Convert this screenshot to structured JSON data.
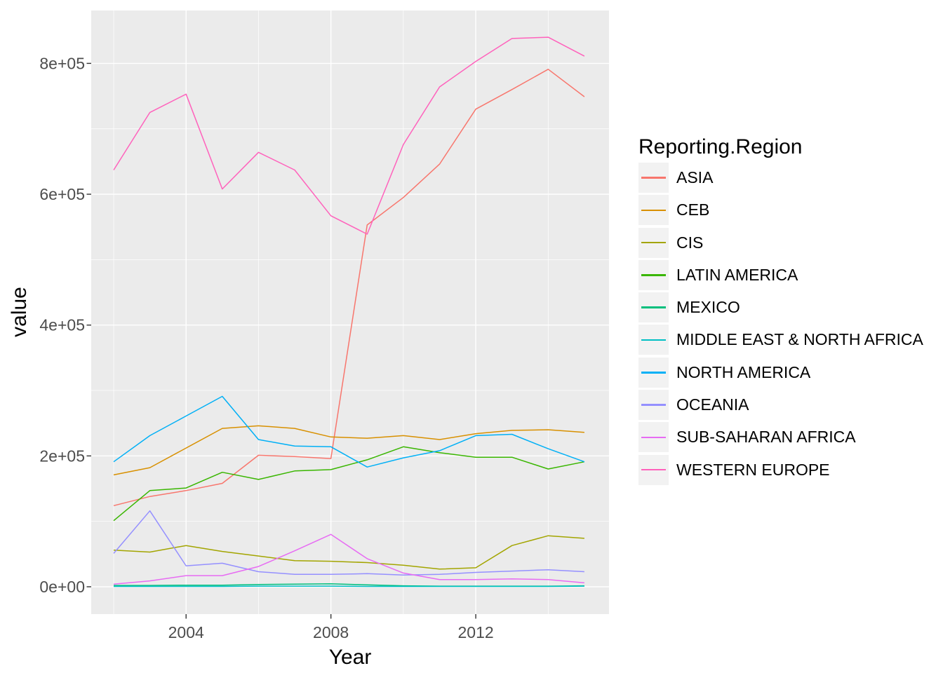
{
  "figure": {
    "background": "#FFFFFF",
    "panel_background": "#EBEBEB",
    "grid_color": "#FFFFFF",
    "tick_mark_color": "#333333",
    "tick_label_color": "#4D4D4D",
    "legend_key_background": "#F2F2F2"
  },
  "axes": {
    "x": {
      "title": "Year",
      "tick_labels": [
        "2004",
        "2008",
        "2012"
      ],
      "tick_values": [
        2004,
        2008,
        2012
      ],
      "minor_tick_values": [
        2002,
        2006,
        2010,
        2014
      ],
      "range": [
        2001.38,
        2015.68
      ]
    },
    "y": {
      "title": "value",
      "tick_labels": [
        "0e+00",
        "2e+05",
        "4e+05",
        "6e+05",
        "8e+05"
      ],
      "tick_values": [
        0,
        200000,
        400000,
        600000,
        800000
      ],
      "minor_tick_values": [
        100000,
        300000,
        500000,
        700000
      ],
      "range": [
        -41800,
        880800
      ]
    }
  },
  "legend": {
    "title": "Reporting.Region",
    "position": "right"
  },
  "chart_data": {
    "type": "line",
    "title": "",
    "xlabel": "Year",
    "ylabel": "value",
    "grid": "on",
    "legend_position": "right",
    "x": [
      2002,
      2003,
      2004,
      2005,
      2006,
      2007,
      2008,
      2009,
      2010,
      2011,
      2012,
      2013,
      2014,
      2015
    ],
    "series": [
      {
        "name": "ASIA",
        "color": "#F8766D",
        "values": [
          124000,
          138000,
          147000,
          158000,
          201000,
          199000,
          196000,
          553000,
          595000,
          646000,
          730000,
          760000,
          791000,
          749000
        ]
      },
      {
        "name": "CEB",
        "color": "#D89000",
        "values": [
          171000,
          182000,
          212000,
          242000,
          246000,
          242000,
          229000,
          227000,
          231000,
          225000,
          234000,
          239000,
          240000,
          236000
        ]
      },
      {
        "name": "CIS",
        "color": "#A3A500",
        "values": [
          56000,
          53000,
          63000,
          54000,
          47000,
          40000,
          39000,
          37000,
          33000,
          27000,
          29000,
          63000,
          78000,
          74000
        ]
      },
      {
        "name": "LATIN AMERICA",
        "color": "#39B600",
        "values": [
          101000,
          147000,
          151000,
          175000,
          164000,
          177000,
          179000,
          194000,
          214000,
          205000,
          198000,
          198000,
          180000,
          191000
        ]
      },
      {
        "name": "MEXICO",
        "color": "#00BF7D",
        "values": [
          2000,
          2000,
          2500,
          2500,
          3500,
          4000,
          4500,
          3000,
          1500,
          1000,
          1000,
          1000,
          1000,
          1500
        ]
      },
      {
        "name": "MIDDLE EAST & NORTH AFRICA",
        "color": "#00BFC4",
        "values": [
          500,
          500,
          500,
          500,
          1000,
          1000,
          1000,
          500,
          500,
          500,
          500,
          500,
          500,
          1000
        ]
      },
      {
        "name": "NORTH AMERICA",
        "color": "#00B0F6",
        "values": [
          191000,
          231000,
          261000,
          291000,
          225000,
          215000,
          214000,
          183000,
          197000,
          208000,
          231000,
          233000,
          211000,
          191000
        ]
      },
      {
        "name": "OCEANIA",
        "color": "#9590FF",
        "values": [
          51000,
          116000,
          32000,
          36000,
          23000,
          19000,
          19000,
          20000,
          18000,
          19000,
          22000,
          24000,
          26000,
          23000
        ]
      },
      {
        "name": "SUB-SAHARAN AFRICA",
        "color": "#E76BF3",
        "values": [
          4000,
          9000,
          17000,
          17000,
          31000,
          55000,
          80000,
          43000,
          21000,
          11000,
          11000,
          12000,
          11000,
          6000
        ]
      },
      {
        "name": "WESTERN EUROPE",
        "color": "#FF62BC",
        "values": [
          637000,
          725000,
          753000,
          608000,
          664000,
          637000,
          567000,
          539000,
          676000,
          764000,
          803000,
          838000,
          840000,
          811000
        ]
      }
    ]
  }
}
